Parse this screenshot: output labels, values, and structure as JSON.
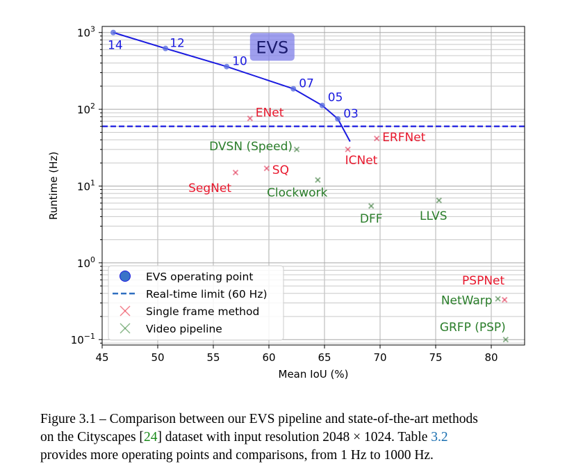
{
  "chart_data": {
    "type": "scatter",
    "title": "",
    "xlabel": "Mean IoU (%)",
    "ylabel": "Runtime (Hz)",
    "xlim": [
      45,
      83
    ],
    "ylim": [
      0.085,
      1200
    ],
    "yscale": "log",
    "grid": true,
    "x_ticks": [
      45,
      50,
      55,
      60,
      65,
      70,
      75,
      80
    ],
    "x_tick_labels": [
      "45",
      "50",
      "55",
      "60",
      "65",
      "70",
      "75",
      "80"
    ],
    "y_ticks": [
      0.1,
      1,
      10,
      100,
      1000
    ],
    "y_tick_labels": [
      {
        "base": "10",
        "exp": "−1"
      },
      {
        "base": "10",
        "exp": "0"
      },
      {
        "base": "10",
        "exp": "1"
      },
      {
        "base": "10",
        "exp": "2"
      },
      {
        "base": "10",
        "exp": "3"
      }
    ],
    "evs_badge": "EVS",
    "evs_curve": {
      "name": "EVS operating point",
      "color": "#1a1adf",
      "points": [
        {
          "x": 46.0,
          "y": 1000,
          "label": "14"
        },
        {
          "x": 50.7,
          "y": 620,
          "label": "12"
        },
        {
          "x": 56.2,
          "y": 360,
          "label": "10"
        },
        {
          "x": 62.2,
          "y": 185,
          "label": "07"
        },
        {
          "x": 64.8,
          "y": 112,
          "label": "05"
        },
        {
          "x": 66.2,
          "y": 75,
          "label": "03"
        },
        {
          "x": 67.3,
          "y": 38,
          "label": ""
        }
      ]
    },
    "realtime_limit": {
      "name": "Real-time limit (60 Hz)",
      "y": 60,
      "color": "#1a1adf"
    },
    "single_frame": {
      "name": "Single frame method",
      "color": "#e8182d",
      "points": [
        {
          "x": 58.3,
          "y": 76,
          "label": "ENet"
        },
        {
          "x": 69.7,
          "y": 41.7,
          "label": "ERFNet"
        },
        {
          "x": 67.1,
          "y": 30,
          "label": "ICNet"
        },
        {
          "x": 57.0,
          "y": 15,
          "label": "SegNet"
        },
        {
          "x": 59.8,
          "y": 17,
          "label": "SQ"
        },
        {
          "x": 81.2,
          "y": 0.33,
          "label": "PSPNet"
        }
      ]
    },
    "video": {
      "name": "Video pipeline",
      "color": "#2a7d2a",
      "points": [
        {
          "x": 62.5,
          "y": 30,
          "label": "DVSN (Speed)"
        },
        {
          "x": 64.4,
          "y": 12,
          "label": "Clockwork"
        },
        {
          "x": 69.2,
          "y": 5.5,
          "label": "DFF"
        },
        {
          "x": 75.3,
          "y": 6.5,
          "label": "LLVS"
        },
        {
          "x": 80.6,
          "y": 0.34,
          "label": "NetWarp"
        },
        {
          "x": 81.3,
          "y": 0.1,
          "label": "GRFP (PSP)"
        }
      ]
    },
    "legend": {
      "placement": "lower-left",
      "entries": [
        "EVS operating point",
        "Real-time limit (60 Hz)",
        "Single frame method",
        "Video pipeline"
      ]
    }
  },
  "caption": {
    "line1": "Figure 3.1 – Comparison between our EVS pipeline and state-of-the-art methods",
    "line2_a": "on the Cityscapes [",
    "line2_ref": "24",
    "line2_b": "] dataset with input resolution ",
    "line2_math": "2048 × 1024",
    "line2_c": ". Table ",
    "line2_tref": "3.2",
    "line3": "provides more operating points and comparisons, from 1 Hz to 1000 Hz."
  }
}
